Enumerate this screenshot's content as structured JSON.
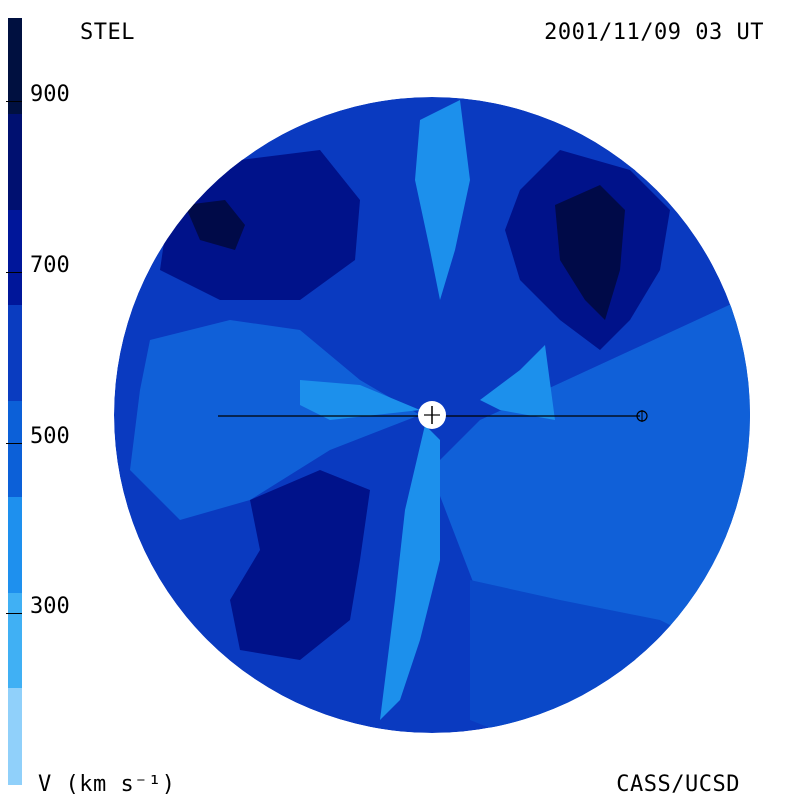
{
  "header": {
    "title_left": "STEL",
    "title_right": "2001/11/09 03 UT"
  },
  "footer": {
    "credit": "CASS/UCSD",
    "unit_label": "V (km s⁻¹)"
  },
  "colorbar": {
    "tick_labels": [
      "900",
      "700",
      "500",
      "300"
    ],
    "band_colors": [
      "#001040",
      "#001070",
      "#00169a",
      "#0a3cc0",
      "#0c60d8",
      "#1e90ee",
      "#40b0f4",
      "#90d0fa"
    ]
  },
  "map": {
    "markers": [
      "sun-marker",
      "earth-marker"
    ],
    "colors": {
      "ring": "#0a3ac0",
      "outer_dark": "#00128a",
      "deep": "#000a48",
      "mid": "#0a48c8",
      "medium": "#1060d8",
      "light": "#1c90ec"
    }
  }
}
